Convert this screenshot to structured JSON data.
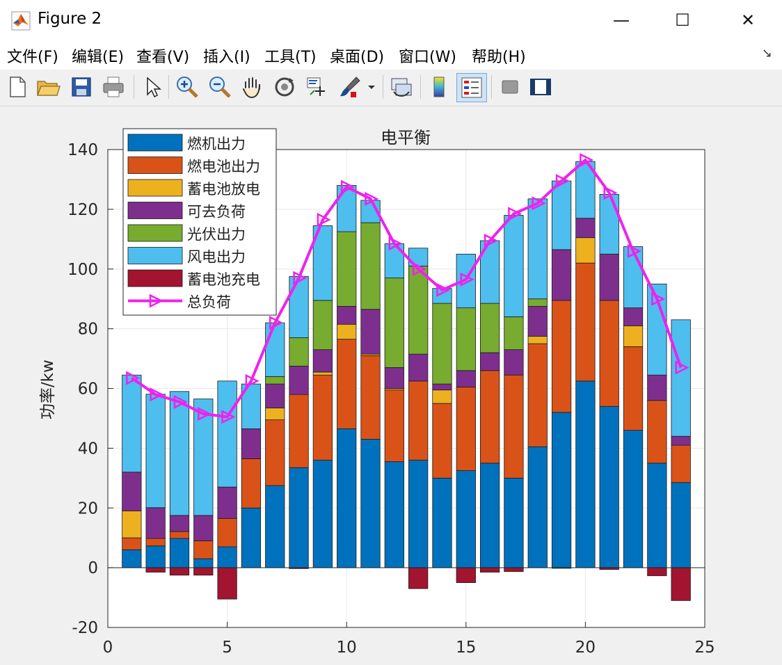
{
  "window": {
    "title": "Figure 2",
    "controls": {
      "minimize": "—",
      "maximize": "☐",
      "close": "✕"
    }
  },
  "menu": {
    "items": [
      "文件(F)",
      "编辑(E)",
      "查看(V)",
      "插入(I)",
      "工具(T)",
      "桌面(D)",
      "窗口(W)",
      "帮助(H)"
    ],
    "dock_arrow": "↘"
  },
  "toolbar": {
    "buttons": [
      "new-file-icon",
      "open-folder-icon",
      "save-icon",
      "print-icon",
      "pointer-icon",
      "zoom-in-icon",
      "zoom-out-icon",
      "pan-hand-icon",
      "rotate-3d-icon",
      "data-cursor-icon",
      "brush-icon",
      "link-plot-icon",
      "colorbar-icon",
      "legend-icon",
      "hide-plot-tools-icon",
      "show-plot-tools-icon"
    ]
  },
  "colors": {
    "gas_turbine": "#0072BD",
    "fuel_cell": "#D95319",
    "battery_discharge": "#EDB120",
    "interruptible_load": "#7E2F8E",
    "pv": "#77AC30",
    "wind": "#4DBEEE",
    "battery_charge": "#A2142F",
    "total_load": "#EE22EE"
  },
  "chart_data": {
    "type": "bar",
    "stacked": true,
    "title": "电平衡",
    "ylabel": "功率/kw",
    "xlim": [
      0,
      25
    ],
    "ylim": [
      -20,
      140
    ],
    "xticks": [
      0,
      5,
      10,
      15,
      20,
      25
    ],
    "yticks": [
      -20,
      0,
      20,
      40,
      60,
      80,
      100,
      120,
      140
    ],
    "grid": true,
    "legend_position": "top-left",
    "x": [
      1,
      2,
      3,
      4,
      5,
      6,
      7,
      8,
      9,
      10,
      11,
      12,
      13,
      14,
      15,
      16,
      17,
      18,
      19,
      20,
      21,
      22,
      23,
      24
    ],
    "series": [
      {
        "name": "燃机出力",
        "values": [
          6,
          7.3,
          9.8,
          3,
          7,
          20,
          27.5,
          33.5,
          36,
          46.5,
          43,
          35.5,
          36,
          30,
          32.5,
          35,
          30,
          40.5,
          52,
          62.5,
          54,
          46,
          35,
          28.5
        ]
      },
      {
        "name": "燃电池出力",
        "values": [
          4,
          2.5,
          2.3,
          6,
          9.5,
          16.5,
          22,
          24.5,
          28.5,
          30,
          28,
          24,
          26.5,
          25,
          28,
          31,
          34.5,
          34.5,
          37.5,
          39.5,
          35.5,
          28,
          21,
          12.5
        ]
      },
      {
        "name": "蓄电池放电",
        "values": [
          9,
          0,
          0,
          0,
          0,
          0,
          4,
          0,
          1,
          5,
          0.5,
          0.5,
          0,
          4.5,
          0,
          0,
          0,
          2.5,
          0,
          8.5,
          0,
          7,
          0,
          0
        ]
      },
      {
        "name": "可去负荷",
        "values": [
          13,
          10.3,
          5.4,
          8.5,
          10.5,
          10,
          8,
          9.5,
          7.5,
          6,
          15,
          7,
          9,
          2,
          5.5,
          6,
          8.5,
          10,
          17,
          6.5,
          15.5,
          6,
          8.5,
          3
        ]
      },
      {
        "name": "光伏出力",
        "values": [
          0,
          0,
          0,
          0,
          0,
          0,
          2.5,
          9.5,
          16.5,
          25,
          29,
          30,
          29.5,
          27,
          21,
          16.5,
          11,
          2.5,
          0,
          0,
          0,
          0,
          0,
          0
        ]
      },
      {
        "name": "风电出力",
        "values": [
          32.5,
          38,
          41.5,
          39,
          35.5,
          15,
          18,
          20.5,
          25,
          15.5,
          7.5,
          11.5,
          6,
          5,
          18,
          21,
          34,
          33.5,
          23,
          19,
          20,
          20.5,
          30.5,
          39
        ]
      },
      {
        "name": "蓄电池充电",
        "values": [
          0,
          -1.5,
          -2.5,
          -2.5,
          -10.5,
          0,
          0,
          -0.3,
          0,
          0,
          0,
          0,
          -7,
          0,
          -5,
          -1.5,
          -1.3,
          0,
          -0.2,
          0,
          -0.6,
          0,
          -2.7,
          -11
        ]
      }
    ],
    "line": {
      "name": "总负荷",
      "values": [
        63.5,
        58,
        55.5,
        51.5,
        50.5,
        62.5,
        82,
        97,
        116.5,
        127.5,
        123.5,
        108.5,
        100,
        93,
        96.5,
        109.5,
        118.5,
        122,
        129.5,
        136.5,
        125.5,
        106,
        90,
        67
      ]
    }
  }
}
